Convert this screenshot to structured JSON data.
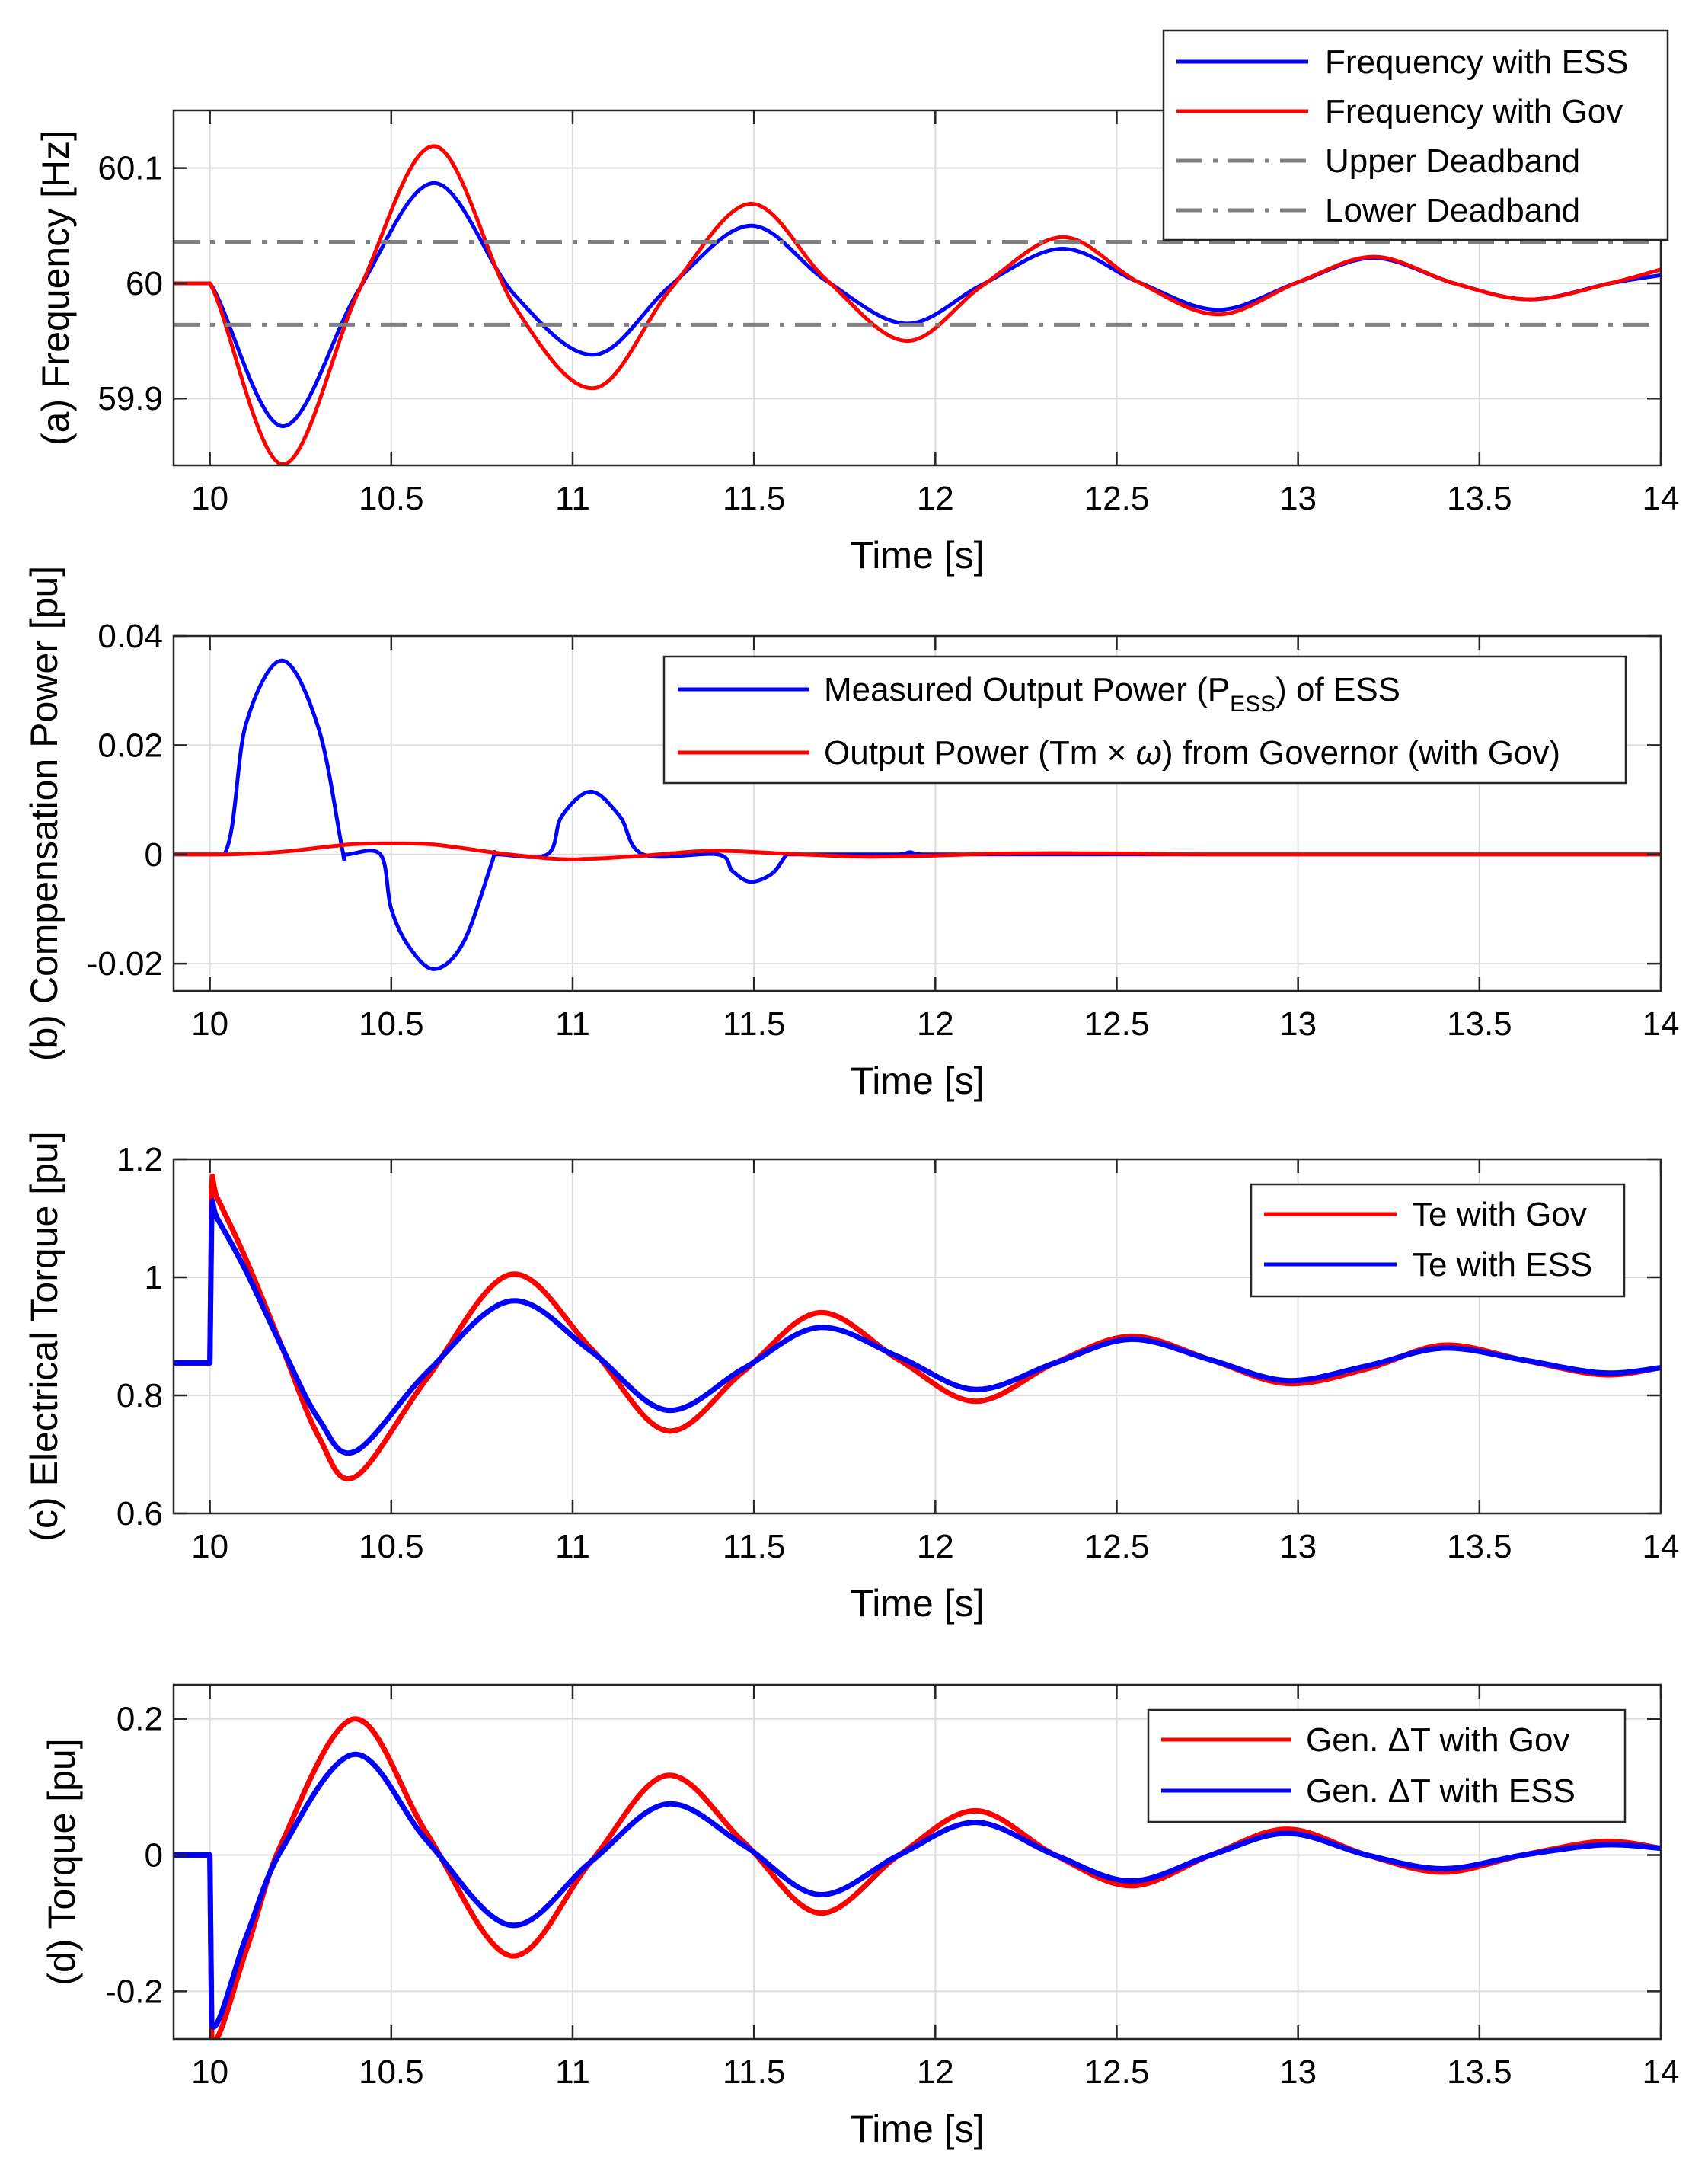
{
  "chart_data": [
    {
      "type": "line",
      "xlabel": "Time [s]",
      "ylabel": "(a) Frequency [Hz]",
      "xlim": [
        9.9,
        14
      ],
      "ylim": [
        59.842,
        60.15
      ],
      "xticks": [
        10,
        10.5,
        11,
        11.5,
        12,
        12.5,
        13,
        13.5,
        14
      ],
      "xtick_labels": [
        "10",
        "10.5",
        "11",
        "11.5",
        "12",
        "12.5",
        "13",
        "13.5",
        "14"
      ],
      "yticks": [
        59.9,
        60,
        60.1
      ],
      "ytick_labels": [
        "59.9",
        "60",
        "60.1"
      ],
      "grid": true,
      "legend_position": "top-right, above the axes",
      "series": [
        {
          "name": "Frequency with ESS",
          "color": "#0000ff",
          "style": "solid",
          "x": [
            9.9,
            10.0,
            10.2,
            10.41,
            10.62,
            10.84,
            11.06,
            11.27,
            11.49,
            11.7,
            11.92,
            12.13,
            12.35,
            12.56,
            12.78,
            13.0,
            13.21,
            13.43,
            13.64,
            13.86,
            14.0
          ],
          "y": [
            60.0,
            60.0,
            59.876,
            59.994,
            60.087,
            59.99,
            59.938,
            59.998,
            60.05,
            60.002,
            59.965,
            59.999,
            60.03,
            60.001,
            59.977,
            60.001,
            60.022,
            60.0,
            59.986,
            60.0,
            60.007
          ]
        },
        {
          "name": "Frequency with Gov",
          "color": "#ff0000",
          "style": "solid",
          "x": [
            9.9,
            10.0,
            10.2,
            10.41,
            10.62,
            10.84,
            11.06,
            11.27,
            11.49,
            11.7,
            11.92,
            12.13,
            12.35,
            12.56,
            12.78,
            13.0,
            13.21,
            13.43,
            13.64,
            13.86,
            14.0
          ],
          "y": [
            60.0,
            60.0,
            59.843,
            59.993,
            60.119,
            59.98,
            59.909,
            59.995,
            60.069,
            60.003,
            59.95,
            59.998,
            60.04,
            60.001,
            59.973,
            60.001,
            60.023,
            60.0,
            59.986,
            60.0,
            60.012
          ]
        },
        {
          "name": "Upper Deadband",
          "color": "#808080",
          "style": "dashdot",
          "x": [
            9.9,
            14.0
          ],
          "y": [
            60.036,
            60.036
          ]
        },
        {
          "name": "Lower Deadband",
          "color": "#808080",
          "style": "dashdot",
          "x": [
            9.9,
            14.0
          ],
          "y": [
            59.964,
            59.964
          ]
        }
      ]
    },
    {
      "type": "line",
      "xlabel": "Time [s]",
      "ylabel": "(b) Compensation Power  [pu]",
      "xlim": [
        9.9,
        14
      ],
      "ylim": [
        -0.025,
        0.04
      ],
      "xticks": [
        10,
        10.5,
        11,
        11.5,
        12,
        12.5,
        13,
        13.5,
        14
      ],
      "xtick_labels": [
        "10",
        "10.5",
        "11",
        "11.5",
        "12",
        "12.5",
        "13",
        "13.5",
        "14"
      ],
      "yticks": [
        -0.02,
        0,
        0.02,
        0.04
      ],
      "ytick_labels": [
        "-0.02",
        "0",
        "0.02",
        "0.04"
      ],
      "grid": true,
      "legend_position": "top-right",
      "legend_labels": [
        {
          "pre": "Measured Output Power (P",
          "sub": "ESS",
          "post": ") of ESS"
        },
        {
          "pre": "Output Power (Tm",
          "times": "×",
          "omega": "ω",
          "post": ") from Governor (with Gov)"
        }
      ],
      "series": [
        {
          "name": "Measured Output Power (PESS) of ESS",
          "color": "#0000ff",
          "style": "solid",
          "x": [
            9.9,
            10.04,
            10.1,
            10.2,
            10.3,
            10.365,
            10.375,
            10.47,
            10.5,
            10.55,
            10.62,
            10.7,
            10.78,
            10.79,
            10.93,
            10.97,
            11.05,
            11.13,
            11.195,
            11.4,
            11.44,
            11.49,
            11.55,
            11.59,
            11.6,
            11.89,
            11.93,
            11.97,
            14.0
          ],
          "y": [
            0,
            0,
            0.024,
            0.0355,
            0.023,
            0.001,
            0,
            0,
            -0.01,
            -0.017,
            -0.021,
            -0.016,
            -0.001,
            0,
            0,
            0.007,
            0.0115,
            0.007,
            0,
            0,
            -0.003,
            -0.005,
            -0.0035,
            0,
            0,
            0,
            0.0004,
            0,
            0
          ]
        },
        {
          "name": "Output Power (Tm×ω) from Governor (with Gov)",
          "color": "#ff0000",
          "style": "solid",
          "x": [
            9.9,
            10.05,
            10.2,
            10.38,
            10.5,
            10.62,
            10.8,
            10.95,
            11.05,
            11.2,
            11.35,
            11.45,
            11.6,
            11.8,
            12.0,
            12.2,
            12.5,
            12.8,
            14.0
          ],
          "y": [
            0,
            0,
            0.0005,
            0.0018,
            0.002,
            0.0018,
            0.0002,
            -0.0008,
            -0.0008,
            -0.0002,
            0.0006,
            0.0006,
            0.0001,
            -0.0004,
            -0.0002,
            0.0002,
            0.0002,
            0,
            0
          ]
        }
      ]
    },
    {
      "type": "line",
      "xlabel": "Time [s]",
      "ylabel": "(c) Electrical Torque  [pu]",
      "xlim": [
        9.9,
        14
      ],
      "ylim": [
        0.6,
        1.2
      ],
      "xticks": [
        10,
        10.5,
        11,
        11.5,
        12,
        12.5,
        13,
        13.5,
        14
      ],
      "xtick_labels": [
        "10",
        "10.5",
        "11",
        "11.5",
        "12",
        "12.5",
        "13",
        "13.5",
        "14"
      ],
      "yticks": [
        0.6,
        0.8,
        1,
        1.2
      ],
      "ytick_labels": [
        "0.6",
        "0.8",
        "1",
        "1.2"
      ],
      "grid": true,
      "legend_position": "right",
      "series": [
        {
          "name": "Te with Gov",
          "color": "#ff0000",
          "style": "solid",
          "x": [
            9.9,
            10.0,
            10.005,
            10.02,
            10.1,
            10.2,
            10.3,
            10.4,
            10.6,
            10.83,
            11.05,
            11.26,
            11.47,
            11.68,
            11.9,
            12.11,
            12.33,
            12.54,
            12.76,
            12.97,
            13.19,
            13.4,
            13.62,
            13.84,
            14.0
          ],
          "y": [
            0.855,
            0.855,
            1.15,
            1.135,
            1.03,
            0.88,
            0.73,
            0.662,
            0.83,
            1.005,
            0.88,
            0.74,
            0.84,
            0.94,
            0.86,
            0.79,
            0.855,
            0.9,
            0.86,
            0.82,
            0.845,
            0.885,
            0.86,
            0.835,
            0.847
          ]
        },
        {
          "name": "Te with ESS",
          "color": "#0000ff",
          "style": "solid",
          "x": [
            9.9,
            10.0,
            10.005,
            10.02,
            10.1,
            10.2,
            10.3,
            10.4,
            10.6,
            10.83,
            11.05,
            11.26,
            11.47,
            11.68,
            11.9,
            12.11,
            12.33,
            12.54,
            12.76,
            12.97,
            13.19,
            13.4,
            13.62,
            13.84,
            14.0
          ],
          "y": [
            0.855,
            0.855,
            1.11,
            1.1,
            1.01,
            0.88,
            0.76,
            0.705,
            0.84,
            0.96,
            0.875,
            0.775,
            0.845,
            0.915,
            0.865,
            0.81,
            0.855,
            0.895,
            0.86,
            0.825,
            0.85,
            0.88,
            0.86,
            0.838,
            0.847
          ]
        }
      ]
    },
    {
      "type": "line",
      "xlabel": "Time [s]",
      "ylabel": "(d) Torque [pu]",
      "xlim": [
        9.9,
        14
      ],
      "ylim": [
        -0.27,
        0.25
      ],
      "xticks": [
        10,
        10.5,
        11,
        11.5,
        12,
        12.5,
        13,
        13.5,
        14
      ],
      "xtick_labels": [
        "10",
        "10.5",
        "11",
        "11.5",
        "12",
        "12.5",
        "13",
        "13.5",
        "14"
      ],
      "yticks": [
        -0.2,
        0,
        0.2
      ],
      "ytick_labels": [
        "-0.2",
        "0",
        "0.2"
      ],
      "grid": true,
      "legend_position": "right",
      "legend_labels": [
        {
          "pre": "Gen. ",
          "delta": "Δ",
          "post": "T with Gov"
        },
        {
          "pre": "Gen. ",
          "delta": "Δ",
          "post": "T with ESS"
        }
      ],
      "series": [
        {
          "name": "Gen. ΔT with Gov",
          "color": "#ff0000",
          "style": "solid",
          "x": [
            9.9,
            10.0,
            10.005,
            10.1,
            10.2,
            10.4,
            10.6,
            10.83,
            11.05,
            11.26,
            11.47,
            11.68,
            11.9,
            12.11,
            12.33,
            12.54,
            12.76,
            12.97,
            13.19,
            13.4,
            13.62,
            13.84,
            14.0
          ],
          "y": [
            0,
            0,
            -0.27,
            -0.14,
            0.02,
            0.2,
            0.03,
            -0.148,
            -0.01,
            0.117,
            0.02,
            -0.085,
            0.0,
            0.065,
            0.0,
            -0.045,
            0.0,
            0.038,
            0.0,
            -0.025,
            0.0,
            0.02,
            0.01
          ]
        },
        {
          "name": "Gen. ΔT with ESS",
          "color": "#0000ff",
          "style": "solid",
          "x": [
            9.9,
            10.0,
            10.005,
            10.1,
            10.2,
            10.4,
            10.6,
            10.83,
            11.05,
            11.26,
            11.47,
            11.68,
            11.9,
            12.11,
            12.33,
            12.54,
            12.76,
            12.97,
            13.19,
            13.4,
            13.62,
            13.84,
            14.0
          ],
          "y": [
            0,
            0,
            -0.25,
            -0.12,
            0.01,
            0.148,
            0.02,
            -0.103,
            -0.01,
            0.075,
            0.015,
            -0.058,
            0.0,
            0.048,
            0.0,
            -0.038,
            0.0,
            0.032,
            0.0,
            -0.02,
            0.0,
            0.015,
            0.01
          ]
        }
      ]
    }
  ]
}
